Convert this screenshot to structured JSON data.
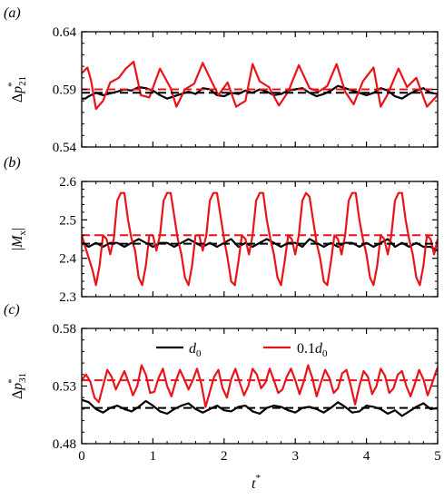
{
  "colors": {
    "d0": "#000000",
    "d01": "#e8141a"
  },
  "legend": {
    "d0_base": "d",
    "d0_sub": "0",
    "d01_base": "0.1d",
    "d01_sub": "0"
  },
  "x_axis": {
    "label": "t",
    "label_sup": "*",
    "ticks": [
      "0",
      "1",
      "2",
      "3",
      "4",
      "5"
    ]
  },
  "chart_data": [
    {
      "type": "line",
      "panel_label": "(a)",
      "ylabel": {
        "base": "Δp",
        "sub": "21",
        "sup": "*"
      },
      "xlim": [
        0,
        5
      ],
      "ylim": [
        0.54,
        0.64
      ],
      "yticks": [
        "0.54",
        "0.59",
        "0.64"
      ],
      "series": [
        {
          "name": "d0",
          "role": "signal",
          "x": [
            0,
            0.05,
            0.1,
            0.2,
            0.3,
            0.5,
            0.6,
            0.7,
            0.8,
            0.9,
            1.0,
            1.1,
            1.2,
            1.3,
            1.4,
            1.5,
            1.6,
            1.7,
            1.8,
            1.9,
            2.0,
            2.1,
            2.2,
            2.3,
            2.4,
            2.5,
            2.6,
            2.7,
            2.8,
            2.9,
            3.0,
            3.1,
            3.2,
            3.3,
            3.4,
            3.5,
            3.6,
            3.7,
            3.8,
            3.9,
            4.0,
            4.1,
            4.2,
            4.3,
            4.4,
            4.5,
            4.6,
            4.7,
            4.8,
            4.9,
            5.0
          ],
          "y": [
            0.582,
            0.582,
            0.584,
            0.587,
            0.585,
            0.588,
            0.59,
            0.589,
            0.592,
            0.591,
            0.589,
            0.585,
            0.582,
            0.584,
            0.586,
            0.588,
            0.586,
            0.591,
            0.59,
            0.585,
            0.584,
            0.587,
            0.586,
            0.589,
            0.587,
            0.59,
            0.588,
            0.585,
            0.586,
            0.589,
            0.59,
            0.591,
            0.587,
            0.584,
            0.586,
            0.589,
            0.593,
            0.591,
            0.589,
            0.587,
            0.585,
            0.587,
            0.591,
            0.589,
            0.584,
            0.582,
            0.586,
            0.589,
            0.591,
            0.587,
            0.586
          ]
        },
        {
          "name": "d0 mean",
          "role": "mean",
          "x": [
            0,
            5
          ],
          "y": [
            0.587,
            0.587
          ]
        },
        {
          "name": "0.1d0",
          "role": "signal",
          "x": [
            0,
            0.08,
            0.13,
            0.2,
            0.3,
            0.4,
            0.52,
            0.62,
            0.73,
            0.83,
            0.95,
            1.1,
            1.25,
            1.33,
            1.45,
            1.58,
            1.7,
            1.8,
            1.92,
            2.05,
            2.17,
            2.3,
            2.4,
            2.5,
            2.63,
            2.77,
            2.9,
            3.05,
            3.2,
            3.33,
            3.45,
            3.58,
            3.7,
            3.82,
            3.95,
            4.1,
            4.2,
            4.3,
            4.45,
            4.57,
            4.7,
            4.85,
            5.0
          ],
          "y": [
            0.604,
            0.609,
            0.598,
            0.573,
            0.58,
            0.596,
            0.6,
            0.608,
            0.614,
            0.585,
            0.583,
            0.608,
            0.591,
            0.575,
            0.59,
            0.595,
            0.613,
            0.6,
            0.585,
            0.596,
            0.575,
            0.58,
            0.612,
            0.597,
            0.592,
            0.576,
            0.588,
            0.611,
            0.591,
            0.588,
            0.593,
            0.612,
            0.588,
            0.577,
            0.597,
            0.609,
            0.575,
            0.586,
            0.608,
            0.592,
            0.6,
            0.575,
            0.585
          ]
        },
        {
          "name": "0.1d0 mean",
          "role": "mean",
          "x": [
            0,
            5
          ],
          "y": [
            0.59,
            0.59
          ]
        }
      ]
    },
    {
      "type": "line",
      "panel_label": "(b)",
      "ylabel": {
        "base": "|M",
        "sub": "x",
        "tail": "|"
      },
      "xlim": [
        0,
        5
      ],
      "ylim": [
        2.3,
        2.6
      ],
      "yticks": [
        "2.3",
        "2.4",
        "2.5",
        "2.6"
      ],
      "series": [
        {
          "name": "d0",
          "role": "signal",
          "x": [
            0,
            0.1,
            0.2,
            0.3,
            0.4,
            0.5,
            0.6,
            0.7,
            0.8,
            0.9,
            1.0,
            1.1,
            1.2,
            1.3,
            1.4,
            1.5,
            1.6,
            1.7,
            1.8,
            1.9,
            2.0,
            2.1,
            2.2,
            2.3,
            2.4,
            2.5,
            2.6,
            2.7,
            2.8,
            2.9,
            3.0,
            3.1,
            3.2,
            3.3,
            3.4,
            3.5,
            3.6,
            3.7,
            3.8,
            3.9,
            4.0,
            4.1,
            4.2,
            4.3,
            4.4,
            4.5,
            4.6,
            4.7,
            4.8,
            4.9,
            5.0
          ],
          "y": [
            2.44,
            2.43,
            2.44,
            2.43,
            2.44,
            2.44,
            2.43,
            2.44,
            2.45,
            2.44,
            2.43,
            2.44,
            2.44,
            2.43,
            2.44,
            2.45,
            2.44,
            2.43,
            2.44,
            2.43,
            2.44,
            2.45,
            2.43,
            2.44,
            2.43,
            2.44,
            2.45,
            2.44,
            2.43,
            2.44,
            2.44,
            2.43,
            2.45,
            2.44,
            2.43,
            2.44,
            2.43,
            2.44,
            2.44,
            2.43,
            2.44,
            2.43,
            2.44,
            2.45,
            2.43,
            2.44,
            2.43,
            2.44,
            2.43,
            2.43,
            2.42
          ]
        },
        {
          "name": "d0 mean",
          "role": "mean",
          "x": [
            0,
            5
          ],
          "y": [
            2.438,
            2.438
          ]
        },
        {
          "name": "0.1d0",
          "role": "signal",
          "x": [
            0,
            0.05,
            0.1,
            0.15,
            0.2,
            0.25,
            0.3,
            0.35,
            0.4,
            0.45,
            0.5,
            0.55,
            0.6,
            0.65,
            0.7,
            0.75,
            0.8,
            0.85,
            0.9,
            0.95,
            1.0,
            1.05,
            1.1,
            1.15,
            1.2,
            1.25,
            1.3,
            1.35,
            1.4,
            1.45,
            1.5,
            1.55,
            1.6,
            1.65,
            1.7,
            1.75,
            1.8,
            1.85,
            1.9,
            1.95,
            2.0,
            2.05,
            2.1,
            2.15,
            2.2,
            2.25,
            2.3,
            2.35,
            2.4,
            2.45,
            2.5,
            2.55,
            2.6,
            2.65,
            2.7,
            2.75,
            2.8,
            2.85,
            2.9,
            2.95,
            3.0,
            3.05,
            3.1,
            3.15,
            3.2,
            3.25,
            3.3,
            3.35,
            3.4,
            3.45,
            3.5,
            3.55,
            3.6,
            3.65,
            3.7,
            3.75,
            3.8,
            3.85,
            3.9,
            3.95,
            4.0,
            4.05,
            4.1,
            4.15,
            4.2,
            4.25,
            4.3,
            4.35,
            4.4,
            4.45,
            4.5,
            4.55,
            4.6,
            4.65,
            4.7,
            4.75,
            4.8,
            4.85,
            4.9,
            4.95,
            5.0
          ],
          "y": [
            2.46,
            2.43,
            2.4,
            2.37,
            2.33,
            2.38,
            2.46,
            2.45,
            2.41,
            2.45,
            2.55,
            2.57,
            2.57,
            2.5,
            2.45,
            2.42,
            2.35,
            2.33,
            2.38,
            2.46,
            2.46,
            2.42,
            2.46,
            2.55,
            2.57,
            2.57,
            2.51,
            2.45,
            2.41,
            2.35,
            2.33,
            2.38,
            2.46,
            2.46,
            2.42,
            2.46,
            2.55,
            2.57,
            2.57,
            2.51,
            2.45,
            2.4,
            2.34,
            2.33,
            2.39,
            2.46,
            2.45,
            2.41,
            2.46,
            2.55,
            2.57,
            2.57,
            2.5,
            2.45,
            2.41,
            2.35,
            2.33,
            2.39,
            2.46,
            2.45,
            2.41,
            2.46,
            2.55,
            2.57,
            2.56,
            2.5,
            2.44,
            2.4,
            2.34,
            2.33,
            2.39,
            2.46,
            2.45,
            2.41,
            2.46,
            2.55,
            2.57,
            2.57,
            2.5,
            2.45,
            2.41,
            2.35,
            2.33,
            2.38,
            2.46,
            2.45,
            2.41,
            2.46,
            2.55,
            2.57,
            2.57,
            2.5,
            2.45,
            2.41,
            2.35,
            2.33,
            2.38,
            2.46,
            2.45,
            2.41,
            2.45
          ]
        },
        {
          "name": "0.1d0 mean",
          "role": "mean",
          "x": [
            0,
            5
          ],
          "y": [
            2.46,
            2.46
          ]
        }
      ]
    },
    {
      "type": "line",
      "panel_label": "(c)",
      "ylabel": {
        "base": "Δp",
        "sub": "31",
        "sup": "*"
      },
      "xlim": [
        0,
        5
      ],
      "ylim": [
        0.48,
        0.58
      ],
      "yticks": [
        "0.48",
        "0.53",
        "0.58"
      ],
      "series": [
        {
          "name": "d0",
          "role": "signal",
          "x": [
            0,
            0.1,
            0.2,
            0.3,
            0.4,
            0.5,
            0.6,
            0.7,
            0.8,
            0.9,
            1.0,
            1.1,
            1.2,
            1.3,
            1.4,
            1.5,
            1.6,
            1.7,
            1.8,
            1.9,
            2.0,
            2.1,
            2.2,
            2.3,
            2.4,
            2.5,
            2.6,
            2.7,
            2.8,
            2.9,
            3.0,
            3.1,
            3.2,
            3.3,
            3.4,
            3.5,
            3.6,
            3.7,
            3.8,
            3.9,
            4.0,
            4.1,
            4.2,
            4.3,
            4.4,
            4.5,
            4.6,
            4.7,
            4.8,
            4.9,
            5.0
          ],
          "y": [
            0.518,
            0.516,
            0.51,
            0.507,
            0.511,
            0.513,
            0.51,
            0.508,
            0.512,
            0.517,
            0.513,
            0.508,
            0.506,
            0.51,
            0.513,
            0.515,
            0.51,
            0.507,
            0.51,
            0.513,
            0.509,
            0.508,
            0.512,
            0.513,
            0.508,
            0.506,
            0.511,
            0.513,
            0.512,
            0.509,
            0.507,
            0.511,
            0.512,
            0.51,
            0.507,
            0.511,
            0.516,
            0.512,
            0.507,
            0.508,
            0.513,
            0.512,
            0.51,
            0.506,
            0.509,
            0.504,
            0.508,
            0.512,
            0.515,
            0.51,
            0.511
          ]
        },
        {
          "name": "d0 mean",
          "role": "mean",
          "x": [
            0,
            5
          ],
          "y": [
            0.511,
            0.511
          ]
        },
        {
          "name": "0.1d0",
          "role": "signal",
          "x": [
            0,
            0.06,
            0.12,
            0.18,
            0.24,
            0.3,
            0.36,
            0.42,
            0.48,
            0.54,
            0.6,
            0.66,
            0.72,
            0.78,
            0.84,
            0.9,
            0.96,
            1.02,
            1.08,
            1.14,
            1.2,
            1.26,
            1.32,
            1.38,
            1.44,
            1.5,
            1.56,
            1.62,
            1.68,
            1.74,
            1.8,
            1.86,
            1.92,
            1.98,
            2.04,
            2.1,
            2.16,
            2.22,
            2.28,
            2.34,
            2.4,
            2.46,
            2.52,
            2.58,
            2.64,
            2.7,
            2.76,
            2.82,
            2.88,
            2.94,
            3.0,
            3.06,
            3.12,
            3.18,
            3.24,
            3.3,
            3.36,
            3.42,
            3.48,
            3.54,
            3.6,
            3.66,
            3.72,
            3.78,
            3.84,
            3.9,
            3.96,
            4.02,
            4.08,
            4.14,
            4.2,
            4.26,
            4.32,
            4.38,
            4.44,
            4.5,
            4.56,
            4.62,
            4.68,
            4.74,
            4.8,
            4.86,
            4.92,
            4.98,
            5.0
          ],
          "y": [
            0.535,
            0.54,
            0.534,
            0.52,
            0.516,
            0.53,
            0.544,
            0.538,
            0.527,
            0.535,
            0.543,
            0.533,
            0.522,
            0.53,
            0.548,
            0.54,
            0.524,
            0.525,
            0.537,
            0.545,
            0.53,
            0.521,
            0.534,
            0.544,
            0.536,
            0.527,
            0.535,
            0.545,
            0.532,
            0.512,
            0.525,
            0.538,
            0.544,
            0.528,
            0.52,
            0.536,
            0.545,
            0.533,
            0.522,
            0.53,
            0.545,
            0.54,
            0.528,
            0.533,
            0.545,
            0.535,
            0.524,
            0.527,
            0.538,
            0.545,
            0.535,
            0.523,
            0.534,
            0.548,
            0.537,
            0.521,
            0.533,
            0.544,
            0.537,
            0.524,
            0.528,
            0.541,
            0.544,
            0.53,
            0.514,
            0.53,
            0.543,
            0.538,
            0.523,
            0.53,
            0.545,
            0.539,
            0.524,
            0.528,
            0.54,
            0.543,
            0.53,
            0.521,
            0.532,
            0.544,
            0.536,
            0.522,
            0.532,
            0.543,
            0.546
          ]
        },
        {
          "name": "0.1d0 mean",
          "role": "mean",
          "x": [
            0,
            5
          ],
          "y": [
            0.535,
            0.535
          ]
        }
      ]
    }
  ]
}
